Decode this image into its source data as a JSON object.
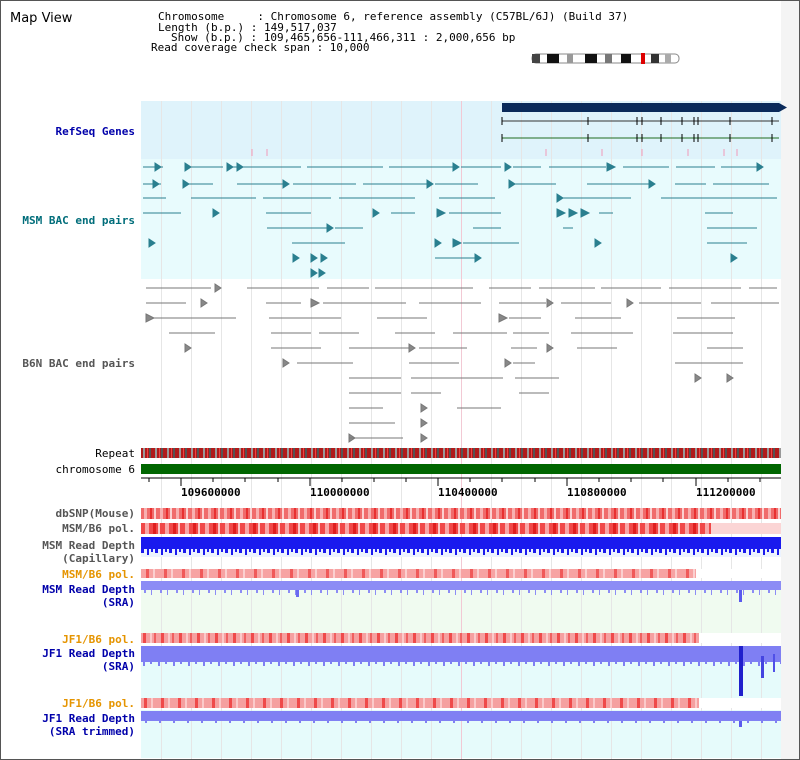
{
  "header": {
    "title": "Map View",
    "chromosome_line": "Chromosome     : Chromosome 6, reference assembly (C57BL/6J) (Build 37)",
    "length_line": "Length (b.p.) : 149,517,037",
    "show_line": "Show (b.p.) : 109,465,656-111,466,311 : 2,000,656 bp",
    "coverage_line": "Read coverage check span : 10,000"
  },
  "tracks": {
    "refseq": "RefSeq Genes",
    "msm_bac": "MSM BAC end pairs",
    "b6n_bac": "B6N BAC end pairs",
    "repeat": "Repeat",
    "chromosome": "chromosome 6",
    "dbsnp": "dbSNP(Mouse)",
    "msm_b6_pol_1": "MSM/B6 pol.",
    "msm_depth_cap_1": "MSM Read Depth",
    "msm_depth_cap_2": "(Capillary)",
    "msm_b6_pol_2": "MSM/B6 pol.",
    "msm_depth_sra_1": "MSM Read Depth",
    "msm_depth_sra_2": "(SRA)",
    "jf1_b6_pol_1": "JF1/B6 pol.",
    "jf1_depth_1": "JF1 Read Depth",
    "jf1_depth_2": "(SRA)",
    "jf1_b6_pol_2": "JF1/B6 pol.",
    "jf1_trim_1": "JF1 Read Depth",
    "jf1_trim_2": "(SRA trimmed)"
  },
  "ruler": {
    "ticks": [
      "109600000",
      "110000000",
      "110400000",
      "110800000",
      "111200000"
    ]
  },
  "colors": {
    "refseq_bg": "#dff3fb",
    "msm_bg": "#e8fbfd",
    "chromosome": "#006600",
    "depth_blue": "#1a1aee",
    "depth_light": "#8c8cf5",
    "pol_red": "#ee2222",
    "label_blue": "#0000aa",
    "label_teal": "#006d7a",
    "label_orange": "#e59400"
  }
}
